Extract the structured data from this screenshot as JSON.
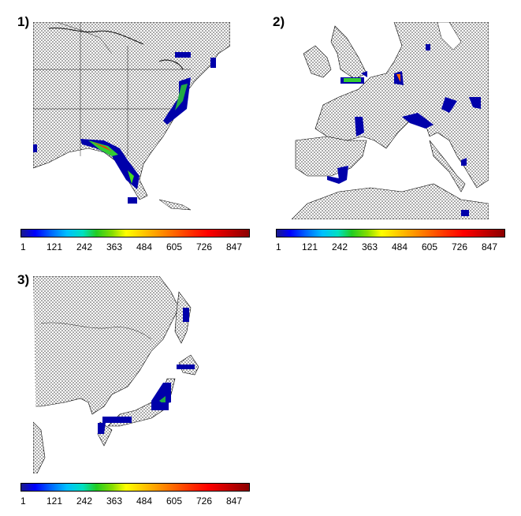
{
  "panels": [
    {
      "label": "1)",
      "region": "Eastern United States"
    },
    {
      "label": "2)",
      "region": "Western Europe"
    },
    {
      "label": "3)",
      "region": "Japan"
    }
  ],
  "colorbar": {
    "ticks": [
      "1",
      "121",
      "242",
      "363",
      "484",
      "605",
      "726",
      "847"
    ],
    "colors": [
      "#1a1a8c",
      "#0000ff",
      "#00bfff",
      "#22cc22",
      "#ffff00",
      "#ff9900",
      "#ff3300",
      "#8b0000"
    ]
  }
}
